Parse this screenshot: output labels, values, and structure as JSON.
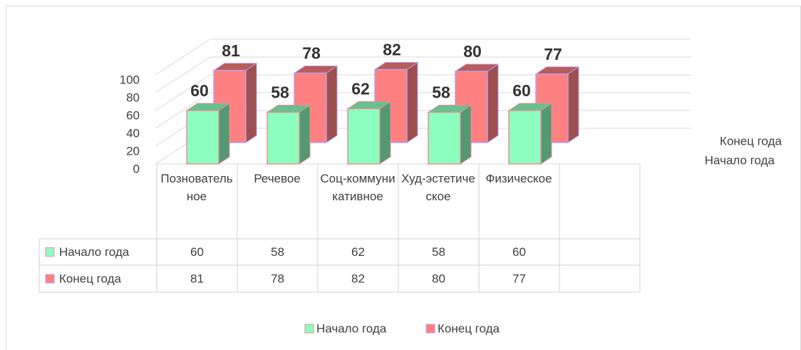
{
  "chart_data": {
    "type": "bar3d",
    "categories": [
      "Позновательное",
      "Речевое",
      "Соц-коммуникативное",
      "Худ-эстетическое",
      "Физическое"
    ],
    "series": [
      {
        "name": "Начало года",
        "color": "#8cffc0",
        "values": [
          60,
          58,
          62,
          58,
          60
        ]
      },
      {
        "name": "Конец года",
        "color": "#ff8080",
        "values": [
          81,
          78,
          82,
          80,
          77
        ]
      }
    ],
    "ylim": [
      0,
      100
    ],
    "yticks": [
      0,
      20,
      40,
      60,
      80,
      100
    ],
    "grid": true,
    "legend": "bottom",
    "data_table": true
  }
}
